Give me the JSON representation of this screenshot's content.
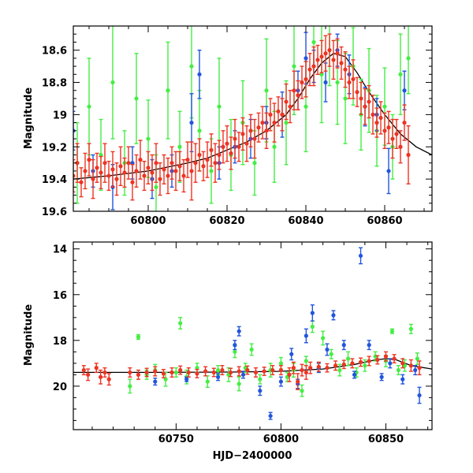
{
  "chart_data": [
    {
      "type": "scatter",
      "panel": "top",
      "ylabel": "Magnitude",
      "xlabel": "",
      "xlim": [
        60781,
        60872
      ],
      "ylim": [
        19.6,
        18.45
      ],
      "y_inverted": true,
      "xticks": [
        60800,
        60820,
        60840,
        60860
      ],
      "yticks": [
        18.6,
        18.8,
        19.0,
        19.2,
        19.4,
        19.6
      ],
      "ytick_labels": [
        "18.6",
        "18.8",
        "19",
        "19.2",
        "19.4",
        "19.6"
      ],
      "series_colors": {
        "green": "#44ee44",
        "blue": "#2255dd",
        "red": "#ee3322",
        "model": "#000000"
      },
      "model_curve": {
        "x": [
          60781,
          60790,
          60800,
          60810,
          60815,
          60820,
          60825,
          60830,
          60835,
          60838,
          60841,
          60844,
          60847,
          60850,
          60853,
          60856,
          60860,
          60864,
          60868,
          60872
        ],
        "y": [
          19.4,
          19.38,
          19.35,
          19.3,
          19.27,
          19.22,
          19.17,
          19.1,
          19.0,
          18.9,
          18.78,
          18.68,
          18.62,
          18.64,
          18.74,
          18.86,
          19.0,
          19.12,
          19.2,
          19.25
        ]
      },
      "series": [
        {
          "color": "green",
          "x": [
            60782,
            60785,
            60788,
            60791,
            60794,
            60797,
            60800,
            60802,
            60805,
            60808,
            60811,
            60813,
            60816,
            60818,
            60821,
            60824,
            60827,
            60830,
            60832,
            60835,
            60837,
            60840,
            60842,
            60844,
            60846,
            60848,
            60850,
            60852,
            60854,
            60856,
            60858,
            60860,
            60862,
            60864,
            60866
          ],
          "y": [
            19.3,
            18.95,
            19.25,
            18.8,
            19.3,
            18.9,
            19.15,
            19.45,
            18.85,
            19.2,
            18.7,
            19.1,
            19.35,
            18.95,
            19.25,
            19.05,
            19.3,
            18.85,
            19.2,
            19.05,
            18.7,
            18.95,
            18.55,
            18.75,
            18.6,
            18.8,
            18.9,
            18.7,
            19.0,
            18.85,
            19.1,
            18.95,
            19.2,
            18.75,
            18.65
          ],
          "err": [
            0.25,
            0.3,
            0.22,
            0.35,
            0.2,
            0.28,
            0.24,
            0.2,
            0.3,
            0.22,
            0.32,
            0.25,
            0.2,
            0.3,
            0.22,
            0.26,
            0.2,
            0.32,
            0.22,
            0.26,
            0.3,
            0.28,
            0.25,
            0.3,
            0.22,
            0.26,
            0.28,
            0.24,
            0.22,
            0.26,
            0.22,
            0.24,
            0.2,
            0.25,
            0.22
          ]
        },
        {
          "color": "blue",
          "x": [
            60781,
            60786,
            60791,
            60796,
            60801,
            60806,
            60811,
            60813,
            60818,
            60822,
            60826,
            60830,
            60834,
            60838,
            60840,
            60842,
            60845,
            60848,
            60851,
            60855,
            60858,
            60861,
            60865
          ],
          "y": [
            19.1,
            19.35,
            19.45,
            19.3,
            19.4,
            19.35,
            19.05,
            18.75,
            19.3,
            19.2,
            19.15,
            19.05,
            19.0,
            18.85,
            18.65,
            18.7,
            18.8,
            18.6,
            18.75,
            18.95,
            19.0,
            19.35,
            18.85
          ],
          "err": [
            0.12,
            0.1,
            0.14,
            0.1,
            0.12,
            0.1,
            0.18,
            0.15,
            0.1,
            0.1,
            0.12,
            0.1,
            0.14,
            0.12,
            0.16,
            0.1,
            0.12,
            0.1,
            0.12,
            0.12,
            0.1,
            0.14,
            0.12
          ]
        },
        {
          "color": "red",
          "x": [
            60781,
            60782,
            60783,
            60784,
            60785,
            60786,
            60787,
            60788,
            60789,
            60790,
            60791,
            60792,
            60793,
            60794,
            60795,
            60796,
            60797,
            60798,
            60799,
            60800,
            60801,
            60802,
            60803,
            60804,
            60805,
            60806,
            60807,
            60808,
            60809,
            60810,
            60811,
            60812,
            60813,
            60814,
            60815,
            60816,
            60817,
            60818,
            60819,
            60820,
            60821,
            60822,
            60823,
            60824,
            60825,
            60826,
            60827,
            60828,
            60829,
            60830,
            60831,
            60832,
            60833,
            60834,
            60835,
            60836,
            60837,
            60838,
            60839,
            60840,
            60841,
            60842,
            60843,
            60844,
            60845,
            60846,
            60847,
            60848,
            60849,
            60850,
            60851,
            60852,
            60853,
            60854,
            60855,
            60856,
            60857,
            60858,
            60859,
            60860,
            60861,
            60862,
            60863,
            60864,
            60865,
            60866
          ],
          "y": [
            19.38,
            19.3,
            19.42,
            19.35,
            19.28,
            19.4,
            19.33,
            19.36,
            19.3,
            19.38,
            19.34,
            19.4,
            19.32,
            19.36,
            19.3,
            19.42,
            19.35,
            19.28,
            19.38,
            19.33,
            19.36,
            19.3,
            19.4,
            19.34,
            19.38,
            19.3,
            19.35,
            19.32,
            19.38,
            19.28,
            19.35,
            19.3,
            19.25,
            19.32,
            19.28,
            19.22,
            19.3,
            19.25,
            19.2,
            19.18,
            19.24,
            19.15,
            19.2,
            19.12,
            19.18,
            19.1,
            19.15,
            19.08,
            19.05,
            19.1,
            19.0,
            19.05,
            18.98,
            19.0,
            18.92,
            18.95,
            18.85,
            18.88,
            18.8,
            18.78,
            18.72,
            18.7,
            18.66,
            18.64,
            18.62,
            18.6,
            18.66,
            18.62,
            18.68,
            18.72,
            18.8,
            18.78,
            18.86,
            18.9,
            18.95,
            18.92,
            19.0,
            19.05,
            19.02,
            19.1,
            19.08,
            19.15,
            19.12,
            19.2,
            19.05,
            19.25
          ],
          "err": [
            0.1,
            0.12,
            0.09,
            0.11,
            0.1,
            0.12,
            0.09,
            0.1,
            0.12,
            0.09,
            0.11,
            0.1,
            0.12,
            0.09,
            0.1,
            0.11,
            0.1,
            0.12,
            0.09,
            0.1,
            0.11,
            0.12,
            0.1,
            0.09,
            0.11,
            0.1,
            0.12,
            0.09,
            0.1,
            0.11,
            0.18,
            0.12,
            0.1,
            0.09,
            0.11,
            0.1,
            0.12,
            0.09,
            0.1,
            0.11,
            0.1,
            0.12,
            0.09,
            0.1,
            0.11,
            0.1,
            0.12,
            0.09,
            0.1,
            0.11,
            0.1,
            0.12,
            0.09,
            0.1,
            0.11,
            0.1,
            0.12,
            0.09,
            0.1,
            0.11,
            0.1,
            0.12,
            0.09,
            0.1,
            0.11,
            0.1,
            0.12,
            0.09,
            0.1,
            0.11,
            0.1,
            0.12,
            0.09,
            0.1,
            0.11,
            0.1,
            0.12,
            0.09,
            0.1,
            0.11,
            0.1,
            0.12,
            0.09,
            0.1,
            0.11,
            0.18
          ]
        }
      ]
    },
    {
      "type": "scatter",
      "panel": "bottom",
      "ylabel": "Magnitude",
      "xlabel": "HJD−2400000",
      "xlim": [
        60701,
        60872
      ],
      "ylim": [
        21.9,
        13.7
      ],
      "y_inverted": true,
      "xticks": [
        60750,
        60800,
        60850
      ],
      "yticks": [
        14,
        16,
        18,
        20
      ],
      "ytick_labels": [
        "14",
        "16",
        "18",
        "20"
      ],
      "series_colors": {
        "green": "#44ee44",
        "blue": "#2255dd",
        "red": "#ee3322",
        "model": "#000000"
      },
      "model_curve": {
        "x": [
          60701,
          60740,
          60780,
          60800,
          60820,
          60835,
          60845,
          60850,
          60855,
          60862,
          60872
        ],
        "y": [
          19.4,
          19.4,
          19.38,
          19.35,
          19.25,
          19.05,
          18.85,
          18.8,
          18.85,
          19.1,
          19.25
        ]
      },
      "series": [
        {
          "color": "green",
          "x": [
            60728,
            60732,
            60736,
            60740,
            60745,
            60750,
            60752,
            60755,
            60760,
            60765,
            60770,
            60775,
            60778,
            60780,
            60783,
            60786,
            60790,
            60795,
            60800,
            60803,
            60806,
            60810,
            60812,
            60815,
            60818,
            60820,
            60824,
            60828,
            60832,
            60836,
            60840,
            60845,
            60850,
            60853,
            60856,
            60859,
            60862,
            60865
          ],
          "y": [
            20.0,
            17.85,
            19.5,
            19.3,
            19.7,
            19.4,
            17.25,
            19.6,
            19.2,
            19.8,
            19.3,
            19.5,
            18.5,
            19.9,
            19.2,
            18.4,
            19.7,
            19.3,
            19.0,
            19.6,
            19.3,
            20.2,
            18.9,
            17.4,
            19.2,
            17.9,
            18.6,
            19.3,
            18.8,
            19.4,
            19.1,
            18.7,
            18.9,
            17.6,
            19.3,
            19.1,
            17.5,
            18.8
          ],
          "err": [
            0.3,
            0.1,
            0.2,
            0.25,
            0.3,
            0.2,
            0.25,
            0.3,
            0.2,
            0.25,
            0.2,
            0.3,
            0.25,
            0.3,
            0.2,
            0.25,
            0.2,
            0.3,
            0.25,
            0.2,
            0.3,
            0.25,
            0.2,
            0.25,
            0.2,
            0.3,
            0.2,
            0.25,
            0.3,
            0.2,
            0.25,
            0.2,
            0.25,
            0.1,
            0.2,
            0.25,
            0.2,
            0.25
          ]
        },
        {
          "color": "blue",
          "x": [
            60740,
            60755,
            60770,
            60778,
            60780,
            60782,
            60790,
            60795,
            60800,
            60805,
            60808,
            60812,
            60815,
            60818,
            60822,
            60825,
            60830,
            60835,
            60838,
            60842,
            60848,
            60852,
            60858,
            60864,
            60866
          ],
          "y": [
            19.8,
            19.7,
            19.6,
            18.2,
            17.6,
            19.5,
            20.2,
            21.3,
            19.8,
            18.6,
            19.9,
            17.8,
            16.8,
            19.2,
            18.4,
            16.9,
            18.2,
            19.5,
            14.3,
            18.2,
            19.6,
            19.0,
            19.7,
            19.3,
            20.4
          ],
          "err": [
            0.15,
            0.1,
            0.15,
            0.2,
            0.2,
            0.15,
            0.2,
            0.15,
            0.2,
            0.25,
            0.2,
            0.3,
            0.35,
            0.2,
            0.25,
            0.2,
            0.2,
            0.15,
            0.35,
            0.2,
            0.15,
            0.2,
            0.2,
            0.2,
            0.35
          ]
        },
        {
          "color": "red",
          "x": [
            60706,
            60708,
            60712,
            60714,
            60716,
            60718,
            60728,
            60732,
            60736,
            60740,
            60744,
            60748,
            60752,
            60756,
            60760,
            60764,
            60768,
            60772,
            60776,
            60780,
            60784,
            60788,
            60792,
            60796,
            60800,
            60804,
            60806,
            60808,
            60810,
            60812,
            60814,
            60818,
            60822,
            60826,
            60830,
            60834,
            60838,
            60842,
            60846,
            60850,
            60854,
            60858,
            60862,
            60866
          ],
          "y": [
            19.3,
            19.5,
            19.2,
            19.6,
            19.4,
            19.7,
            19.4,
            19.5,
            19.4,
            19.35,
            19.45,
            19.4,
            19.3,
            19.4,
            19.45,
            19.35,
            19.4,
            19.3,
            19.4,
            19.35,
            19.3,
            19.4,
            19.35,
            19.3,
            19.3,
            19.5,
            19.2,
            19.8,
            19.3,
            19.4,
            19.2,
            19.15,
            19.2,
            19.1,
            19.05,
            19.0,
            18.95,
            18.9,
            18.85,
            18.7,
            18.8,
            19.0,
            19.1,
            19.2
          ],
          "err": [
            0.2,
            0.25,
            0.2,
            0.3,
            0.2,
            0.25,
            0.2,
            0.2,
            0.18,
            0.2,
            0.18,
            0.2,
            0.18,
            0.2,
            0.18,
            0.2,
            0.18,
            0.2,
            0.18,
            0.2,
            0.18,
            0.2,
            0.18,
            0.2,
            0.2,
            0.3,
            0.25,
            0.35,
            0.25,
            0.3,
            0.25,
            0.2,
            0.18,
            0.2,
            0.18,
            0.2,
            0.18,
            0.2,
            0.18,
            0.2,
            0.18,
            0.2,
            0.25,
            0.3
          ]
        }
      ]
    }
  ]
}
